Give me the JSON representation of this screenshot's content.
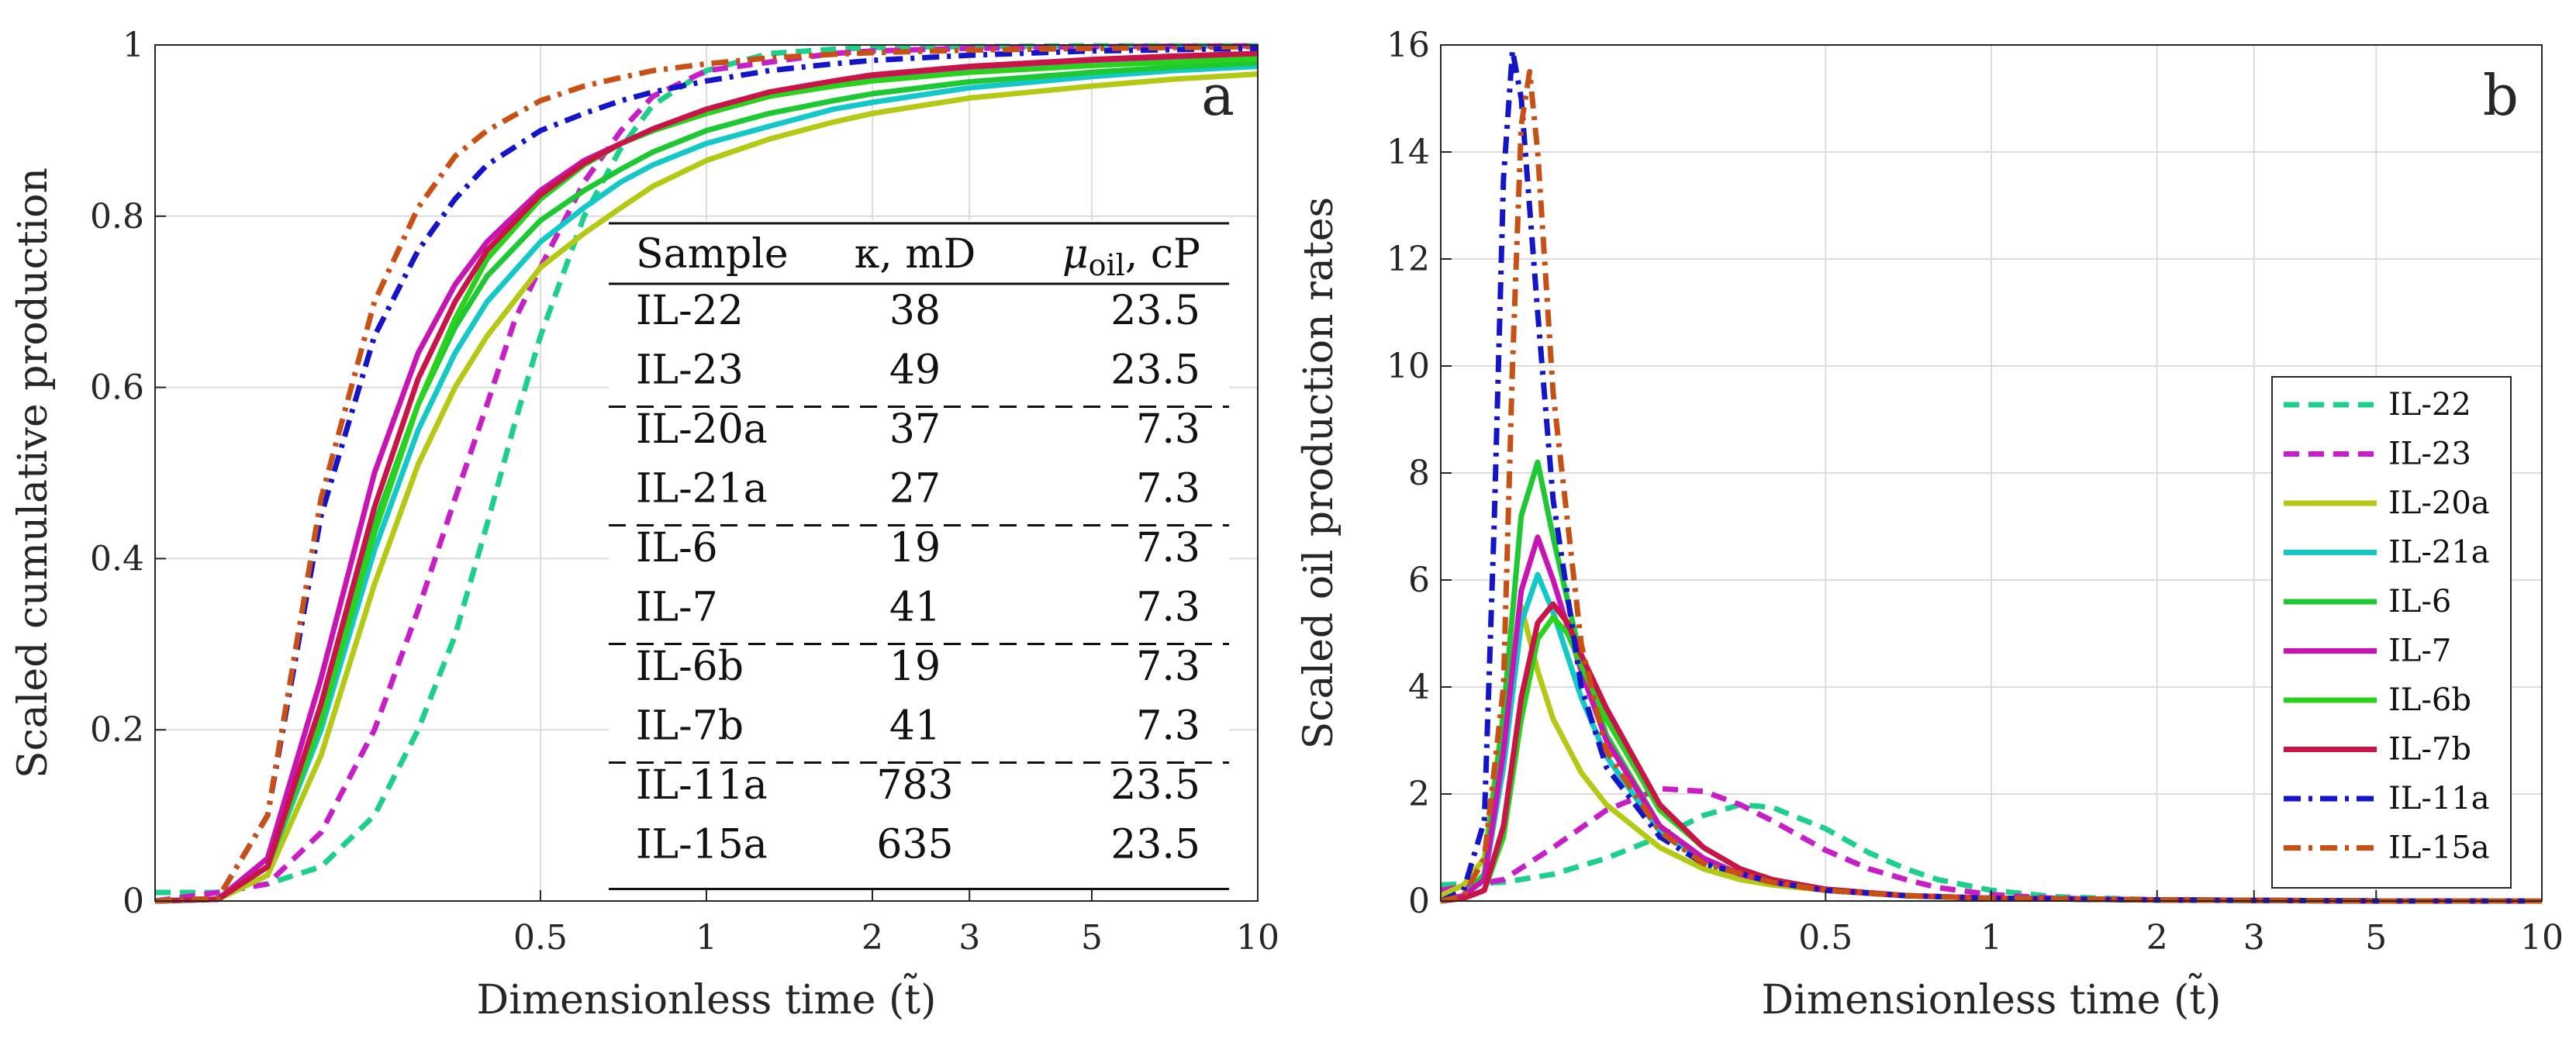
{
  "chart_data": [
    {
      "panel": "a",
      "type": "line",
      "xscale": "log",
      "xlabel": "Dimensionless time (t̃)",
      "ylabel": "Scaled cumulative production",
      "xlim": [
        0.1,
        10
      ],
      "ylim": [
        0,
        1
      ],
      "xticks": [
        0.5,
        1,
        2,
        3,
        5,
        10
      ],
      "xtick_labels": [
        "0.5",
        "1",
        "2",
        "3",
        "5",
        "10"
      ],
      "yticks": [
        0,
        0.2,
        0.4,
        0.6,
        0.8,
        1
      ],
      "ytick_labels": [
        "0",
        "0.2",
        "0.4",
        "0.6",
        "0.8",
        "1"
      ],
      "grid": true,
      "series": [
        {
          "name": "IL-22",
          "color": "#1ccf8a",
          "dash": "dashed",
          "x": [
            0.1,
            0.13,
            0.16,
            0.2,
            0.25,
            0.3,
            0.35,
            0.4,
            0.45,
            0.5,
            0.6,
            0.7,
            0.8,
            1,
            1.3,
            1.7,
            2,
            3,
            5,
            10
          ],
          "values": [
            0.01,
            0.01,
            0.02,
            0.04,
            0.1,
            0.2,
            0.31,
            0.44,
            0.56,
            0.66,
            0.8,
            0.88,
            0.93,
            0.97,
            0.99,
            0.995,
            0.997,
            0.998,
            0.999,
            0.999
          ]
        },
        {
          "name": "IL-23",
          "color": "#c81ec8",
          "dash": "dashed",
          "x": [
            0.1,
            0.13,
            0.16,
            0.2,
            0.25,
            0.3,
            0.35,
            0.4,
            0.45,
            0.5,
            0.6,
            0.7,
            0.8,
            1,
            1.3,
            1.7,
            2,
            3,
            5,
            10
          ],
          "values": [
            0,
            0.01,
            0.02,
            0.08,
            0.2,
            0.34,
            0.47,
            0.58,
            0.68,
            0.74,
            0.84,
            0.9,
            0.94,
            0.97,
            0.98,
            0.99,
            0.993,
            0.996,
            0.998,
            0.999
          ]
        },
        {
          "name": "IL-20a",
          "color": "#b4c814",
          "dash": "solid",
          "x": [
            0.1,
            0.13,
            0.16,
            0.2,
            0.25,
            0.3,
            0.35,
            0.4,
            0.5,
            0.6,
            0.7,
            0.8,
            1,
            1.3,
            1.7,
            2,
            3,
            5,
            7,
            10
          ],
          "values": [
            0,
            0.002,
            0.03,
            0.17,
            0.37,
            0.51,
            0.6,
            0.66,
            0.74,
            0.78,
            0.81,
            0.835,
            0.865,
            0.89,
            0.91,
            0.92,
            0.938,
            0.952,
            0.96,
            0.966
          ]
        },
        {
          "name": "IL-21a",
          "color": "#14c8c8",
          "dash": "solid",
          "x": [
            0.1,
            0.13,
            0.16,
            0.2,
            0.25,
            0.3,
            0.35,
            0.4,
            0.5,
            0.6,
            0.7,
            0.8,
            1,
            1.3,
            1.7,
            2,
            3,
            5,
            7,
            10
          ],
          "values": [
            0,
            0.002,
            0.04,
            0.2,
            0.41,
            0.55,
            0.64,
            0.7,
            0.77,
            0.81,
            0.84,
            0.86,
            0.885,
            0.905,
            0.925,
            0.933,
            0.95,
            0.963,
            0.97,
            0.975
          ]
        },
        {
          "name": "IL-6",
          "color": "#1ec832",
          "dash": "solid",
          "x": [
            0.1,
            0.13,
            0.16,
            0.2,
            0.25,
            0.3,
            0.35,
            0.4,
            0.5,
            0.6,
            0.7,
            0.8,
            1,
            1.3,
            1.7,
            2,
            3,
            5,
            7,
            10
          ],
          "values": [
            0,
            0.002,
            0.04,
            0.22,
            0.44,
            0.58,
            0.67,
            0.73,
            0.795,
            0.83,
            0.855,
            0.875,
            0.9,
            0.92,
            0.935,
            0.943,
            0.957,
            0.968,
            0.974,
            0.979
          ]
        },
        {
          "name": "IL-7",
          "color": "#c814b4",
          "dash": "solid",
          "x": [
            0.1,
            0.13,
            0.16,
            0.2,
            0.25,
            0.3,
            0.35,
            0.4,
            0.5,
            0.6,
            0.7,
            0.8,
            1,
            1.3,
            1.7,
            2,
            3,
            5,
            7,
            10
          ],
          "values": [
            0,
            0.002,
            0.05,
            0.26,
            0.5,
            0.64,
            0.72,
            0.77,
            0.83,
            0.865,
            0.885,
            0.9,
            0.92,
            0.94,
            0.955,
            0.962,
            0.972,
            0.98,
            0.985,
            0.988
          ]
        },
        {
          "name": "IL-6b",
          "color": "#2ad21e",
          "dash": "solid",
          "x": [
            0.1,
            0.13,
            0.16,
            0.2,
            0.25,
            0.3,
            0.35,
            0.4,
            0.5,
            0.6,
            0.7,
            0.8,
            1,
            1.3,
            1.7,
            2,
            3,
            5,
            7,
            10
          ],
          "values": [
            0,
            0.002,
            0.04,
            0.21,
            0.43,
            0.58,
            0.68,
            0.75,
            0.82,
            0.86,
            0.885,
            0.9,
            0.92,
            0.94,
            0.952,
            0.958,
            0.968,
            0.976,
            0.98,
            0.984
          ]
        },
        {
          "name": "IL-7b",
          "color": "#c81446",
          "dash": "solid",
          "x": [
            0.1,
            0.13,
            0.16,
            0.2,
            0.25,
            0.3,
            0.35,
            0.4,
            0.5,
            0.6,
            0.7,
            0.8,
            1,
            1.3,
            1.7,
            2,
            3,
            5,
            7,
            10
          ],
          "values": [
            0,
            0.002,
            0.04,
            0.23,
            0.46,
            0.61,
            0.7,
            0.76,
            0.825,
            0.862,
            0.885,
            0.902,
            0.925,
            0.945,
            0.958,
            0.965,
            0.975,
            0.983,
            0.987,
            0.99
          ]
        },
        {
          "name": "IL-11a",
          "color": "#1414c8",
          "dash": "dashdot",
          "x": [
            0.1,
            0.13,
            0.16,
            0.2,
            0.25,
            0.3,
            0.35,
            0.4,
            0.5,
            0.6,
            0.7,
            0.8,
            1,
            1.3,
            1.7,
            2,
            3,
            5,
            10
          ],
          "values": [
            0,
            0.003,
            0.1,
            0.45,
            0.66,
            0.76,
            0.82,
            0.86,
            0.9,
            0.92,
            0.935,
            0.945,
            0.958,
            0.97,
            0.978,
            0.982,
            0.988,
            0.993,
            0.996
          ]
        },
        {
          "name": "IL-15a",
          "color": "#c85014",
          "dash": "dashdot",
          "x": [
            0.1,
            0.13,
            0.16,
            0.2,
            0.25,
            0.3,
            0.35,
            0.4,
            0.5,
            0.6,
            0.7,
            0.8,
            1,
            1.3,
            1.7,
            2,
            3,
            5,
            10
          ],
          "values": [
            0,
            0.003,
            0.1,
            0.47,
            0.7,
            0.81,
            0.87,
            0.9,
            0.935,
            0.952,
            0.962,
            0.97,
            0.978,
            0.985,
            0.989,
            0.991,
            0.994,
            0.996,
            0.998
          ]
        }
      ],
      "table": {
        "headers": [
          "Sample",
          "κ, mD",
          "μ",
          "oil",
          ", cP"
        ],
        "rows": [
          [
            "IL-22",
            "38",
            "23.5"
          ],
          [
            "IL-23",
            "49",
            "23.5"
          ],
          [
            "IL-20a",
            "37",
            "7.3"
          ],
          [
            "IL-21a",
            "27",
            "7.3"
          ],
          [
            "IL-6",
            "19",
            "7.3"
          ],
          [
            "IL-7",
            "41",
            "7.3"
          ],
          [
            "IL-6b",
            "19",
            "7.3"
          ],
          [
            "IL-7b",
            "41",
            "7.3"
          ],
          [
            "IL-11a",
            "783",
            "23.5"
          ],
          [
            "IL-15a",
            "635",
            "23.5"
          ]
        ]
      }
    },
    {
      "panel": "b",
      "type": "line",
      "xscale": "log",
      "xlabel": "Dimensionless time (t̃)",
      "ylabel": "Scaled oil production rates",
      "xlim": [
        0.1,
        10
      ],
      "ylim": [
        0,
        16
      ],
      "xticks": [
        0.5,
        1,
        2,
        3,
        5,
        10
      ],
      "xtick_labels": [
        "0.5",
        "1",
        "2",
        "3",
        "5",
        "10"
      ],
      "yticks": [
        0,
        2,
        4,
        6,
        8,
        10,
        12,
        14,
        16
      ],
      "ytick_labels": [
        "0",
        "2",
        "4",
        "6",
        "8",
        "10",
        "12",
        "14",
        "16"
      ],
      "grid": true,
      "legend": "center-right",
      "series": [
        {
          "name": "IL-22",
          "color": "#1ccf8a",
          "dash": "dashed",
          "x": [
            0.1,
            0.13,
            0.16,
            0.2,
            0.25,
            0.3,
            0.35,
            0.4,
            0.5,
            0.6,
            0.7,
            0.8,
            1,
            1.3,
            2,
            3,
            5,
            10
          ],
          "values": [
            0.3,
            0.35,
            0.5,
            0.8,
            1.2,
            1.6,
            1.8,
            1.75,
            1.35,
            0.9,
            0.6,
            0.4,
            0.2,
            0.08,
            0.02,
            0.01,
            0,
            0
          ]
        },
        {
          "name": "IL-23",
          "color": "#c81ec8",
          "dash": "dashed",
          "x": [
            0.1,
            0.13,
            0.16,
            0.2,
            0.25,
            0.3,
            0.35,
            0.4,
            0.5,
            0.6,
            0.7,
            0.8,
            1,
            1.3,
            2,
            3,
            5,
            10
          ],
          "values": [
            0.2,
            0.4,
            1,
            1.7,
            2.1,
            2.05,
            1.8,
            1.5,
            0.95,
            0.6,
            0.4,
            0.25,
            0.12,
            0.05,
            0.02,
            0.01,
            0,
            0
          ]
        },
        {
          "name": "IL-20a",
          "color": "#b4c814",
          "dash": "solid",
          "x": [
            0.1,
            0.11,
            0.12,
            0.13,
            0.14,
            0.15,
            0.16,
            0.18,
            0.2,
            0.25,
            0.3,
            0.35,
            0.4,
            0.5,
            0.7,
            1,
            2,
            5,
            10
          ],
          "values": [
            0.1,
            0.3,
            0.8,
            3.5,
            5.5,
            4.3,
            3.4,
            2.4,
            1.8,
            1,
            0.6,
            0.4,
            0.3,
            0.2,
            0.1,
            0.05,
            0.02,
            0,
            0
          ]
        },
        {
          "name": "IL-21a",
          "color": "#14c8c8",
          "dash": "solid",
          "x": [
            0.1,
            0.11,
            0.12,
            0.13,
            0.14,
            0.15,
            0.16,
            0.18,
            0.2,
            0.25,
            0.3,
            0.35,
            0.4,
            0.5,
            0.7,
            1,
            2,
            5,
            10
          ],
          "values": [
            0,
            0.1,
            0.4,
            2.5,
            5.2,
            6.1,
            5.4,
            3.8,
            2.7,
            1.3,
            0.75,
            0.5,
            0.35,
            0.2,
            0.1,
            0.05,
            0.02,
            0,
            0
          ]
        },
        {
          "name": "IL-6",
          "color": "#1ec832",
          "dash": "solid",
          "x": [
            0.1,
            0.11,
            0.12,
            0.13,
            0.14,
            0.15,
            0.16,
            0.18,
            0.2,
            0.25,
            0.3,
            0.35,
            0.4,
            0.5,
            0.7,
            1,
            2,
            5,
            10
          ],
          "values": [
            0,
            0.1,
            0.5,
            3.5,
            7.2,
            8.2,
            6.8,
            4.5,
            3.1,
            1.4,
            0.8,
            0.5,
            0.35,
            0.2,
            0.1,
            0.05,
            0.02,
            0,
            0
          ]
        },
        {
          "name": "IL-7",
          "color": "#c814b4",
          "dash": "solid",
          "x": [
            0.1,
            0.11,
            0.12,
            0.13,
            0.14,
            0.15,
            0.16,
            0.18,
            0.2,
            0.25,
            0.3,
            0.35,
            0.4,
            0.5,
            0.7,
            1,
            2,
            5,
            10
          ],
          "values": [
            0,
            0.1,
            0.4,
            2.8,
            5.8,
            6.8,
            6,
            4.3,
            3,
            1.4,
            0.8,
            0.5,
            0.35,
            0.2,
            0.1,
            0.05,
            0.02,
            0,
            0
          ]
        },
        {
          "name": "IL-6b",
          "color": "#2ad21e",
          "dash": "solid",
          "x": [
            0.1,
            0.11,
            0.12,
            0.13,
            0.14,
            0.15,
            0.16,
            0.17,
            0.18,
            0.2,
            0.25,
            0.3,
            0.35,
            0.4,
            0.5,
            0.7,
            1,
            2,
            5,
            10
          ],
          "values": [
            0,
            0.05,
            0.2,
            1.2,
            3.4,
            4.9,
            5.3,
            5,
            4.4,
            3.4,
            1.7,
            1,
            0.6,
            0.4,
            0.22,
            0.1,
            0.05,
            0.02,
            0,
            0
          ]
        },
        {
          "name": "IL-7b",
          "color": "#c81446",
          "dash": "solid",
          "x": [
            0.1,
            0.11,
            0.12,
            0.13,
            0.14,
            0.15,
            0.16,
            0.17,
            0.18,
            0.2,
            0.25,
            0.3,
            0.35,
            0.4,
            0.5,
            0.7,
            1,
            2,
            5,
            10
          ],
          "values": [
            0,
            0.05,
            0.2,
            1.4,
            3.8,
            5.2,
            5.55,
            5.2,
            4.6,
            3.6,
            1.8,
            1,
            0.6,
            0.4,
            0.22,
            0.1,
            0.05,
            0.02,
            0,
            0
          ]
        },
        {
          "name": "IL-11a",
          "color": "#1414c8",
          "dash": "dashdot",
          "x": [
            0.1,
            0.11,
            0.12,
            0.125,
            0.13,
            0.135,
            0.14,
            0.15,
            0.16,
            0.18,
            0.2,
            0.25,
            0.3,
            0.4,
            0.5,
            0.7,
            1,
            2,
            5,
            10
          ],
          "values": [
            0,
            0.2,
            1.5,
            7,
            13.5,
            15.9,
            15,
            11,
            7.5,
            4,
            2.5,
            1.2,
            0.7,
            0.35,
            0.2,
            0.1,
            0.05,
            0.02,
            0,
            0
          ]
        },
        {
          "name": "IL-15a",
          "color": "#c85014",
          "dash": "dashdot",
          "x": [
            0.1,
            0.11,
            0.12,
            0.13,
            0.135,
            0.14,
            0.145,
            0.15,
            0.16,
            0.18,
            0.2,
            0.25,
            0.3,
            0.4,
            0.5,
            0.7,
            1,
            2,
            5,
            10
          ],
          "values": [
            0,
            0.1,
            0.8,
            4,
            10,
            14.5,
            15.5,
            14,
            9.5,
            4.8,
            2.8,
            1.3,
            0.7,
            0.35,
            0.2,
            0.1,
            0.05,
            0.02,
            0,
            0
          ]
        }
      ]
    }
  ]
}
